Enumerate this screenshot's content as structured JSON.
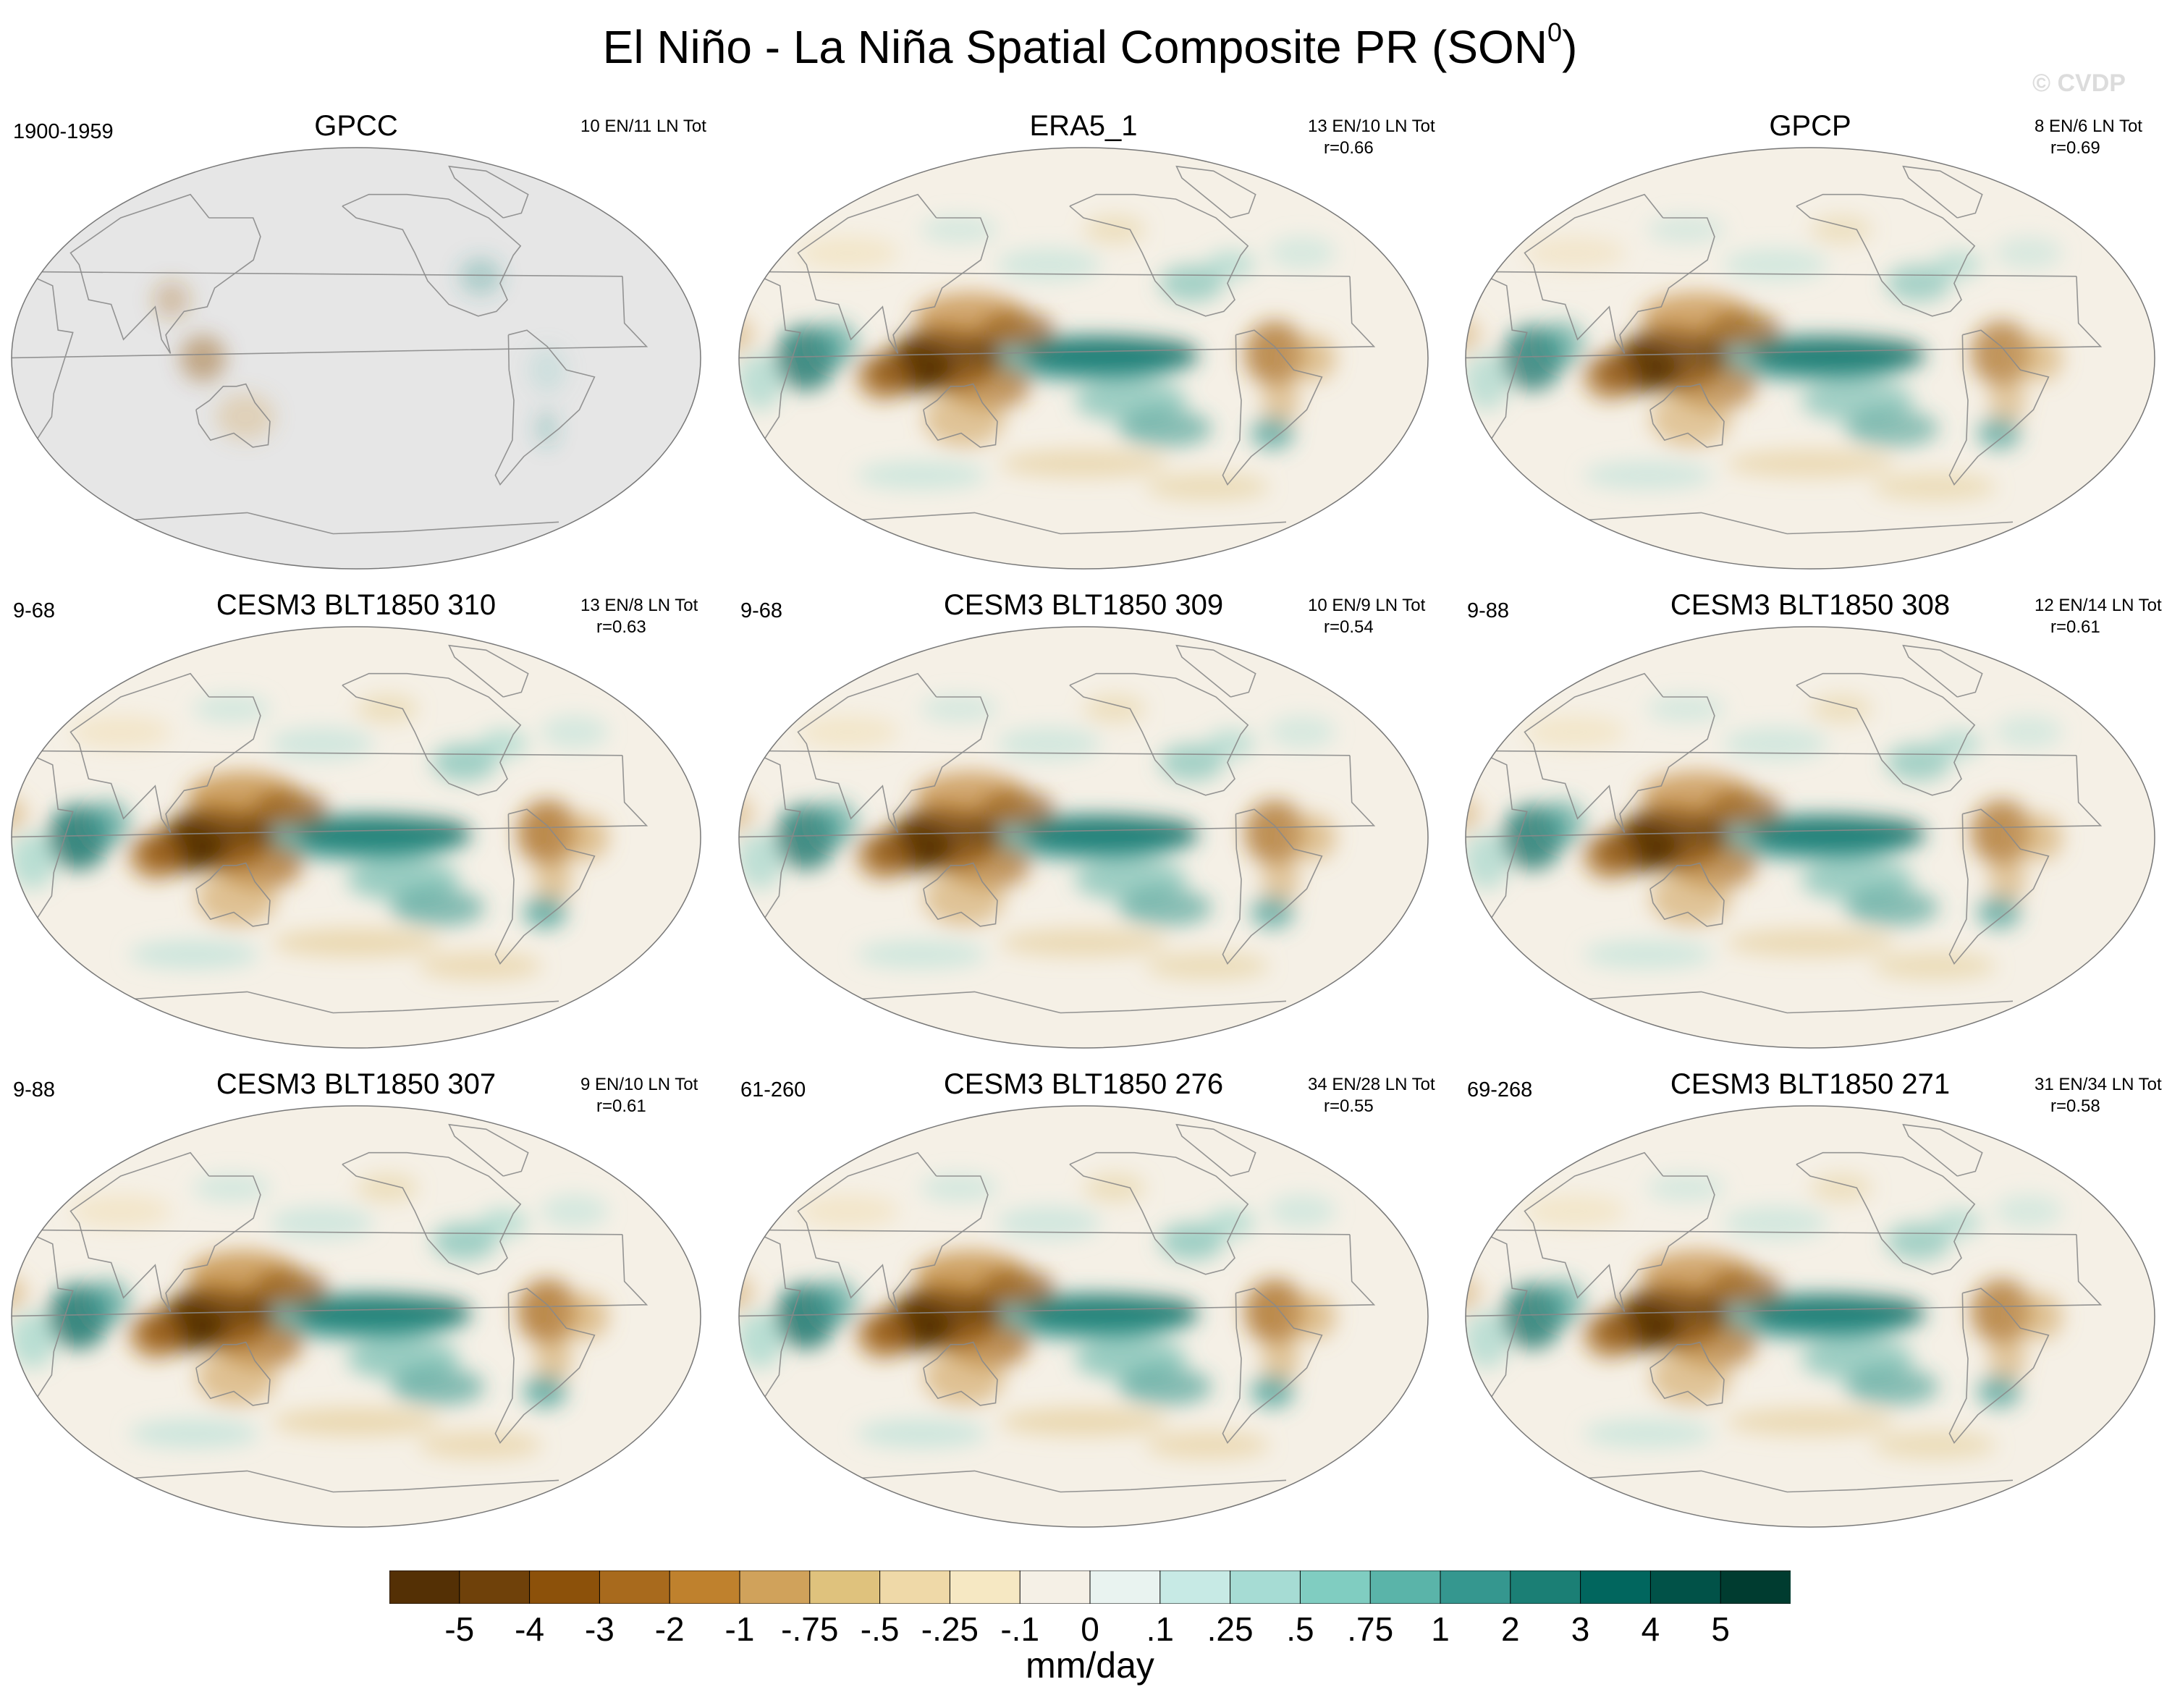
{
  "title": {
    "main": "El Niño - La Niña Spatial Composite PR (SON",
    "superscript": "0",
    "close": ")"
  },
  "watermark": "© CVDP",
  "panels": [
    {
      "title": "GPCC",
      "left_label": "1900-1959",
      "right_label": "10 EN/11 LN Tot",
      "corr": "",
      "dataset": "observations",
      "coverage": "land-only",
      "strength": 0.45
    },
    {
      "title": "ERA5_1",
      "left_label": "",
      "right_label": "13 EN/10 LN Tot",
      "corr": "r=0.66",
      "dataset": "reanalysis",
      "coverage": "global",
      "strength": 0.95
    },
    {
      "title": "GPCP",
      "left_label": "",
      "right_label": "8 EN/6 LN Tot",
      "corr": "r=0.69",
      "dataset": "observations",
      "coverage": "global",
      "strength": 0.9
    },
    {
      "title": "CESM3 BLT1850 310",
      "left_label": "9-68",
      "right_label": "13 EN/8 LN Tot",
      "corr": "r=0.63",
      "dataset": "model",
      "coverage": "global",
      "strength": 1.0
    },
    {
      "title": "CESM3 BLT1850 309",
      "left_label": "9-68",
      "right_label": "10 EN/9 LN Tot",
      "corr": "r=0.54",
      "dataset": "model",
      "coverage": "global",
      "strength": 0.95
    },
    {
      "title": "CESM3 BLT1850 308",
      "left_label": "9-88",
      "right_label": "12 EN/14 LN Tot",
      "corr": "r=0.61",
      "dataset": "model",
      "coverage": "global",
      "strength": 0.95
    },
    {
      "title": "CESM3 BLT1850 307",
      "left_label": "9-88",
      "right_label": "9 EN/10 LN Tot",
      "corr": "r=0.61",
      "dataset": "model",
      "coverage": "global",
      "strength": 1.0
    },
    {
      "title": "CESM3 BLT1850 276",
      "left_label": "61-260",
      "right_label": "34 EN/28 LN Tot",
      "corr": "r=0.55",
      "dataset": "model",
      "coverage": "global",
      "strength": 1.0
    },
    {
      "title": "CESM3 BLT1850 271",
      "left_label": "69-268",
      "right_label": "31 EN/34 LN Tot",
      "corr": "r=0.58",
      "dataset": "model",
      "coverage": "global",
      "strength": 0.95
    }
  ],
  "colorbar": {
    "units": "mm/day",
    "labels": [
      "-5",
      "-4",
      "-3",
      "-2",
      "-1",
      "-.75",
      "-.5",
      "-.25",
      "-.1",
      "0",
      ".1",
      ".25",
      ".5",
      ".75",
      "1",
      "2",
      "3",
      "4",
      "5"
    ],
    "colors": [
      "#543005",
      "#6f410a",
      "#8c510a",
      "#a86a1d",
      "#bf812d",
      "#d0a25b",
      "#dfc27d",
      "#efd9a8",
      "#f6e8c3",
      "#f5f0e6",
      "#e9f3f0",
      "#c7eae5",
      "#a6dcd4",
      "#80cdc1",
      "#5ab4a9",
      "#35978f",
      "#1b7f75",
      "#01665e",
      "#015248",
      "#003c30"
    ]
  },
  "map_colors": {
    "no_data": "#e6e6e6",
    "outline": "#777777",
    "coast": "#8a8a8a",
    "background": "#f5f0e6"
  },
  "footer": {}
}
